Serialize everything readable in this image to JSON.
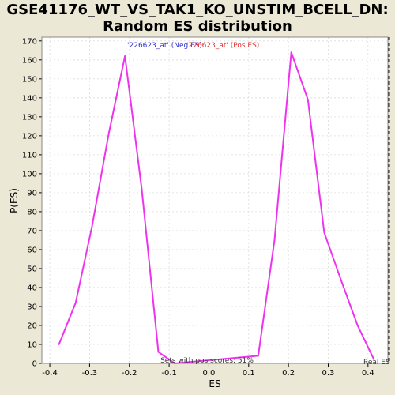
{
  "chart_data": {
    "type": "line",
    "title_line1": "GSE41176_WT_VS_TAK1_KO_UNSTIM_BCELL_DN:",
    "title_line2": "Random ES distribution",
    "xlabel": "ES",
    "ylabel": "P(ES)",
    "xlim": [
      -0.42,
      0.45
    ],
    "ylim": [
      0,
      172
    ],
    "x_ticks": [
      "-0.4",
      "-0.3",
      "-0.2",
      "-0.1",
      "0.0",
      "0.1",
      "0.2",
      "0.3",
      "0.4"
    ],
    "x_tick_values": [
      -0.4,
      -0.3,
      -0.2,
      -0.1,
      0.0,
      0.1,
      0.2,
      0.3,
      0.4
    ],
    "y_ticks": [
      "0",
      "10",
      "20",
      "30",
      "40",
      "50",
      "60",
      "70",
      "80",
      "90",
      "100",
      "110",
      "120",
      "130",
      "140",
      "150",
      "160",
      "170"
    ],
    "y_tick_values": [
      0,
      10,
      20,
      30,
      40,
      50,
      60,
      70,
      80,
      90,
      100,
      110,
      120,
      130,
      140,
      150,
      160,
      170
    ],
    "grid": true,
    "series": [
      {
        "color": "#ee33ee",
        "x": [
          -0.377,
          -0.335,
          -0.294,
          -0.252,
          -0.211,
          -0.169,
          -0.127,
          -0.086,
          0.124,
          0.165,
          0.207,
          0.249,
          0.29,
          0.332,
          0.374,
          0.415
        ],
        "y": [
          10,
          32,
          72,
          121,
          162,
          92,
          6,
          0,
          4,
          65,
          164,
          139,
          69,
          44,
          20,
          2
        ]
      }
    ],
    "real_es_x": 0.453,
    "legend_neg": "'226623_at' (Neg ES)",
    "legend_pos": "'226623_at' (Pos ES)",
    "annotation": "Sets with pos scores: 51%",
    "real_label": "Real ES",
    "colors": {
      "background": "#ece8d6",
      "plot_bg": "#ffffff",
      "line": "#ee33ee",
      "neg_label": "#3333cc",
      "pos_label": "#dd3333",
      "grid": "#dddddd"
    }
  }
}
